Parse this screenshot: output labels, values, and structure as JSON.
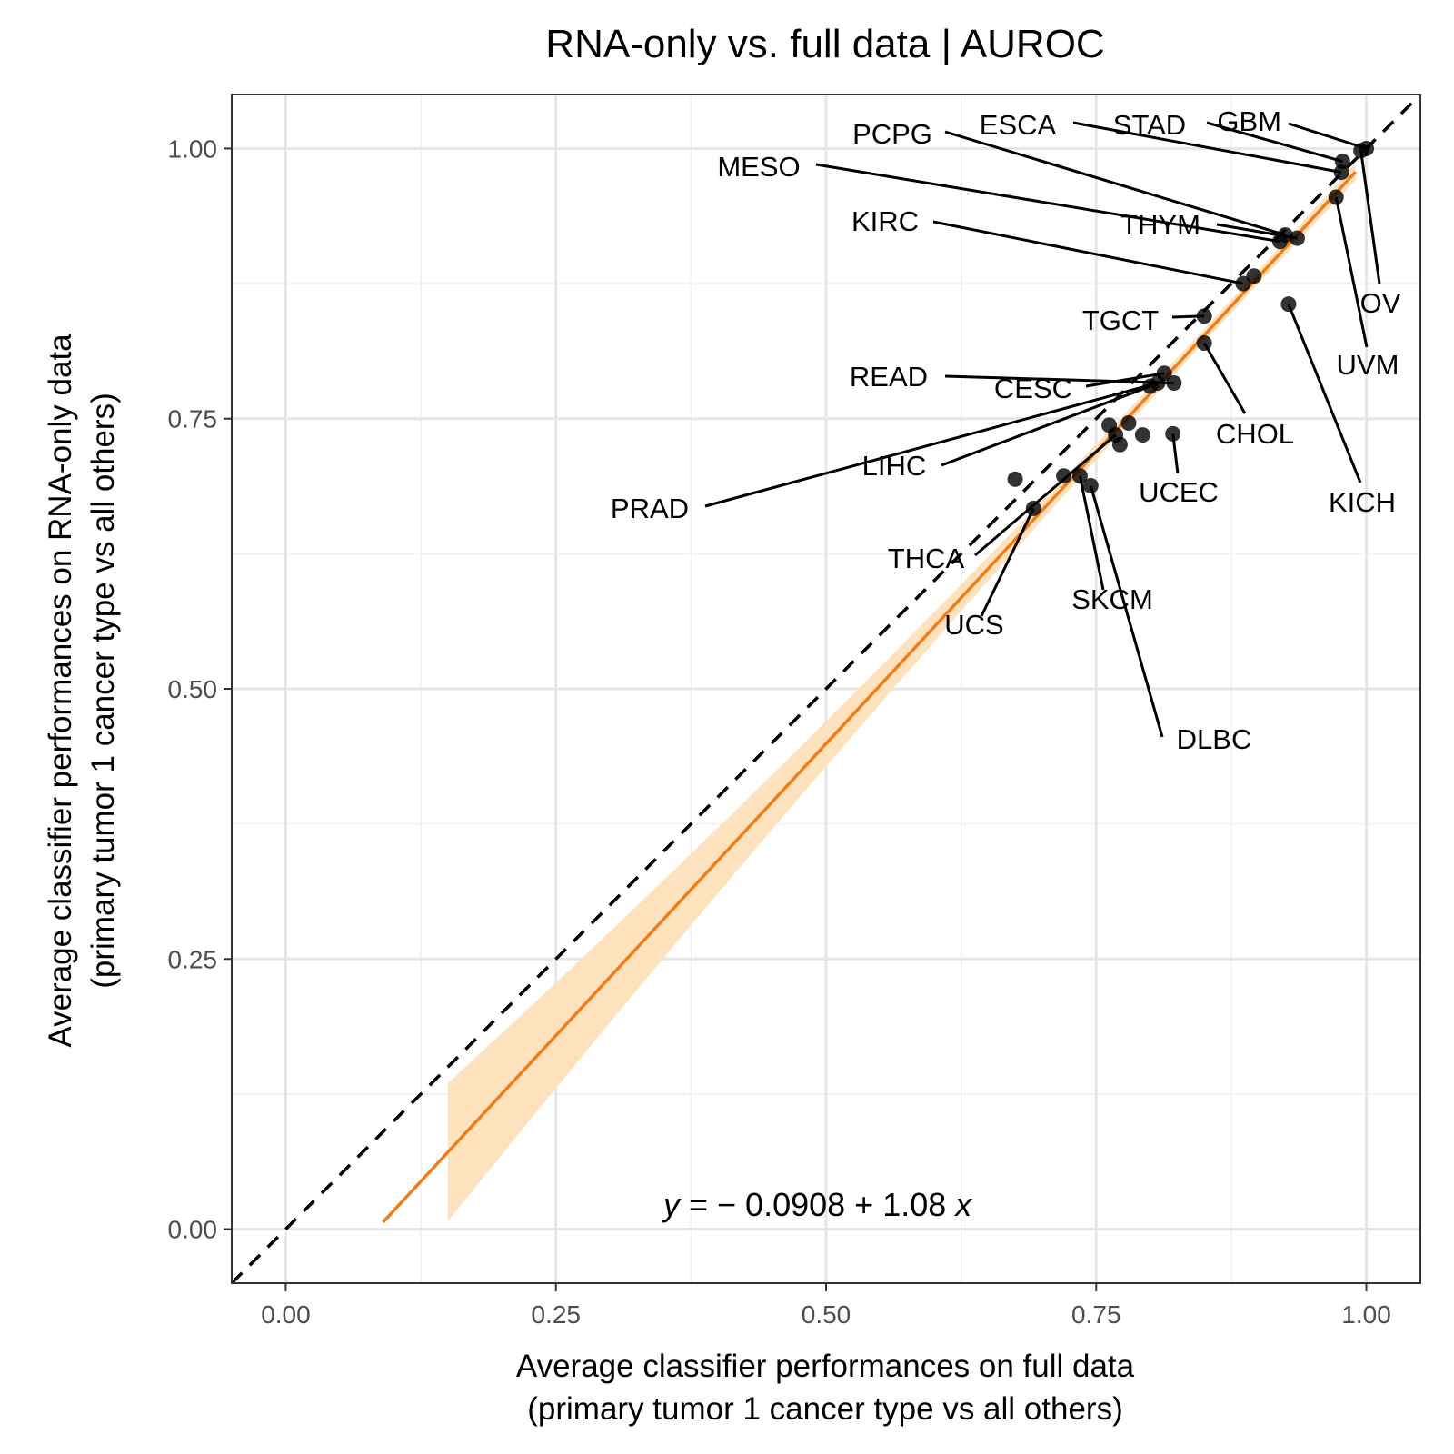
{
  "chart_data": {
    "type": "scatter",
    "title": "RNA-only vs. full data | AUROC",
    "xlabel": [
      "Average classifier performances on full data",
      "(primary tumor 1 cancer type vs all others)"
    ],
    "ylabel": [
      "Average classifier performances on RNA-only data",
      "(primary tumor 1 cancer type vs all others)"
    ],
    "xlim": [
      -0.05,
      1.05
    ],
    "ylim": [
      -0.05,
      1.05
    ],
    "x_ticks": [
      "0.00",
      "0.25",
      "0.50",
      "0.75",
      "1.00"
    ],
    "y_ticks": [
      "0.00",
      "0.25",
      "0.50",
      "0.75",
      "1.00"
    ],
    "grid": true,
    "reference_line": {
      "style": "dashed",
      "color": "#000000",
      "slope": 1,
      "intercept": 0
    },
    "regression": {
      "intercept": -0.0908,
      "slope": 1.08,
      "x_range": [
        0.09,
        0.99
      ],
      "ci_x_range": [
        0.15,
        0.99
      ],
      "color": "#f07d1a",
      "band_color": "#fde2bd",
      "equation_parts": {
        "y": "y",
        "eq": " = − 0.0908 + 1.08 ",
        "x": "x"
      }
    },
    "points": [
      {
        "label": "GBM",
        "x": 1.0,
        "y": 1.0
      },
      {
        "label": "OV",
        "x": 0.995,
        "y": 0.998
      },
      {
        "label": "STAD",
        "x": 0.978,
        "y": 0.988
      },
      {
        "label": "ESCA",
        "x": 0.977,
        "y": 0.978
      },
      {
        "label": "UVM",
        "x": 0.972,
        "y": 0.955
      },
      {
        "label": "PCPG",
        "x": 0.925,
        "y": 0.92
      },
      {
        "label": "MESO",
        "x": 0.92,
        "y": 0.914
      },
      {
        "label": "THYM",
        "x": 0.936,
        "y": 0.917
      },
      {
        "label": "KIRC",
        "x": 0.886,
        "y": 0.875
      },
      {
        "label": "",
        "x": 0.896,
        "y": 0.882
      },
      {
        "label": "KICH",
        "x": 0.928,
        "y": 0.856
      },
      {
        "label": "TGCT",
        "x": 0.85,
        "y": 0.845
      },
      {
        "label": "CHOL",
        "x": 0.85,
        "y": 0.82
      },
      {
        "label": "CESC",
        "x": 0.813,
        "y": 0.792
      },
      {
        "label": "READ",
        "x": 0.822,
        "y": 0.783
      },
      {
        "label": "LIHC",
        "x": 0.8,
        "y": 0.78
      },
      {
        "label": "PRAD",
        "x": 0.807,
        "y": 0.783
      },
      {
        "label": "",
        "x": 0.762,
        "y": 0.744
      },
      {
        "label": "",
        "x": 0.78,
        "y": 0.746
      },
      {
        "label": "THCA",
        "x": 0.768,
        "y": 0.735
      },
      {
        "label": "",
        "x": 0.793,
        "y": 0.735
      },
      {
        "label": "",
        "x": 0.772,
        "y": 0.726
      },
      {
        "label": "UCEC",
        "x": 0.821,
        "y": 0.736
      },
      {
        "label": "",
        "x": 0.675,
        "y": 0.694
      },
      {
        "label": "",
        "x": 0.72,
        "y": 0.697
      },
      {
        "label": "SKCM",
        "x": 0.735,
        "y": 0.697
      },
      {
        "label": "DLBC",
        "x": 0.745,
        "y": 0.688
      },
      {
        "label": "UCS",
        "x": 0.692,
        "y": 0.667
      }
    ]
  }
}
